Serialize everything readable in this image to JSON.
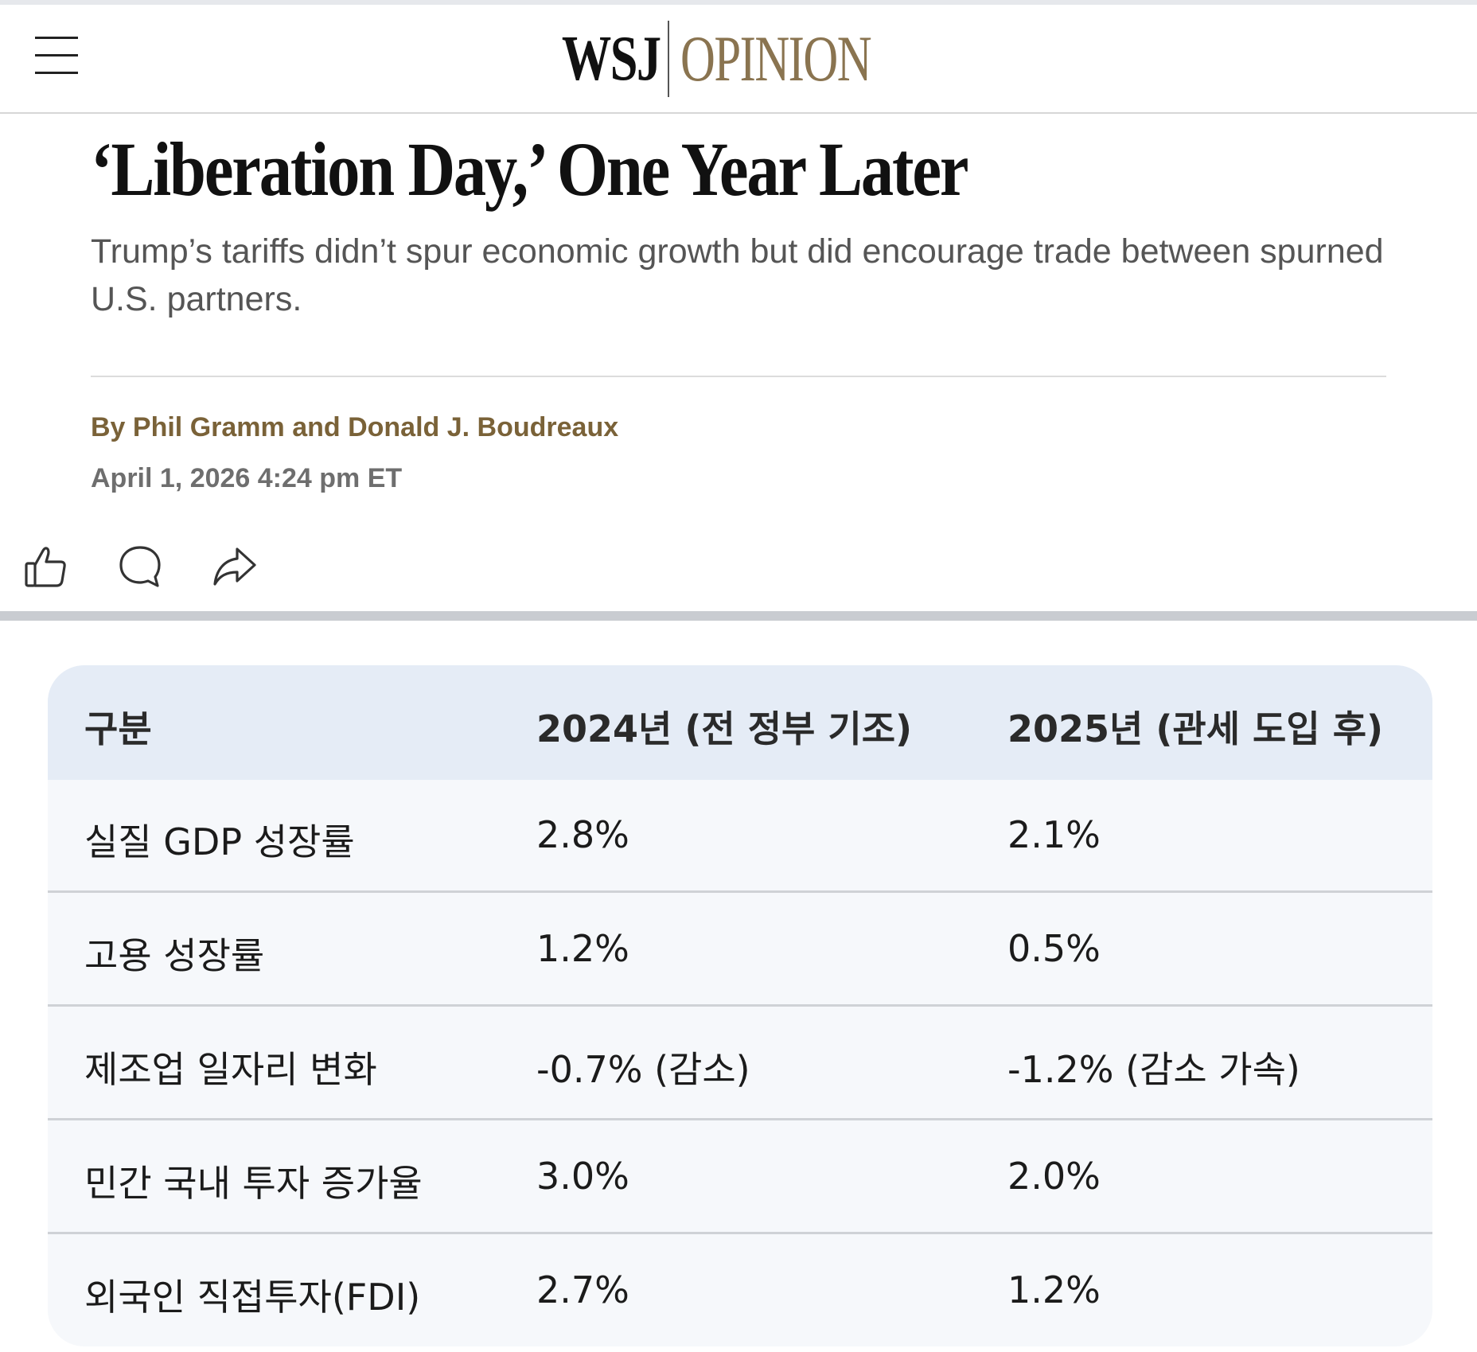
{
  "header": {
    "logo_brand": "WSJ",
    "logo_section": "OPINION"
  },
  "article": {
    "headline": "‘Liberation Day,’ One Year Later",
    "dek": "Trump’s tariffs didn’t spur economic growth but did encourage trade between spurned U.S. partners.",
    "byline": "By Phil Gramm and Donald J. Boudreaux",
    "timestamp": "April 1, 2026 4:24 pm ET"
  },
  "actions": {
    "icons": [
      "thumbs-up-icon",
      "comment-icon",
      "share-icon"
    ]
  },
  "table": {
    "headers": [
      "구분",
      "2024년 (전 정부 기조)",
      "2025년 (관세 도입 후)"
    ],
    "rows": [
      [
        "실질 GDP 성장률",
        "2.8%",
        "2.1%"
      ],
      [
        "고용 성장률",
        "1.2%",
        "0.5%"
      ],
      [
        "제조업 일자리 변화",
        "-0.7% (감소)",
        "-1.2% (감소 가속)"
      ],
      [
        "민간 국내 투자 증가율",
        "3.0%",
        "2.0%"
      ],
      [
        "외국인 직접투자(FDI)",
        "2.7%",
        "1.2%"
      ]
    ]
  },
  "colors": {
    "brand_gold": "#8a7450",
    "byline": "#7a6238",
    "table_header_bg": "#e5ecf6",
    "table_body_bg": "#f6f8fb"
  }
}
